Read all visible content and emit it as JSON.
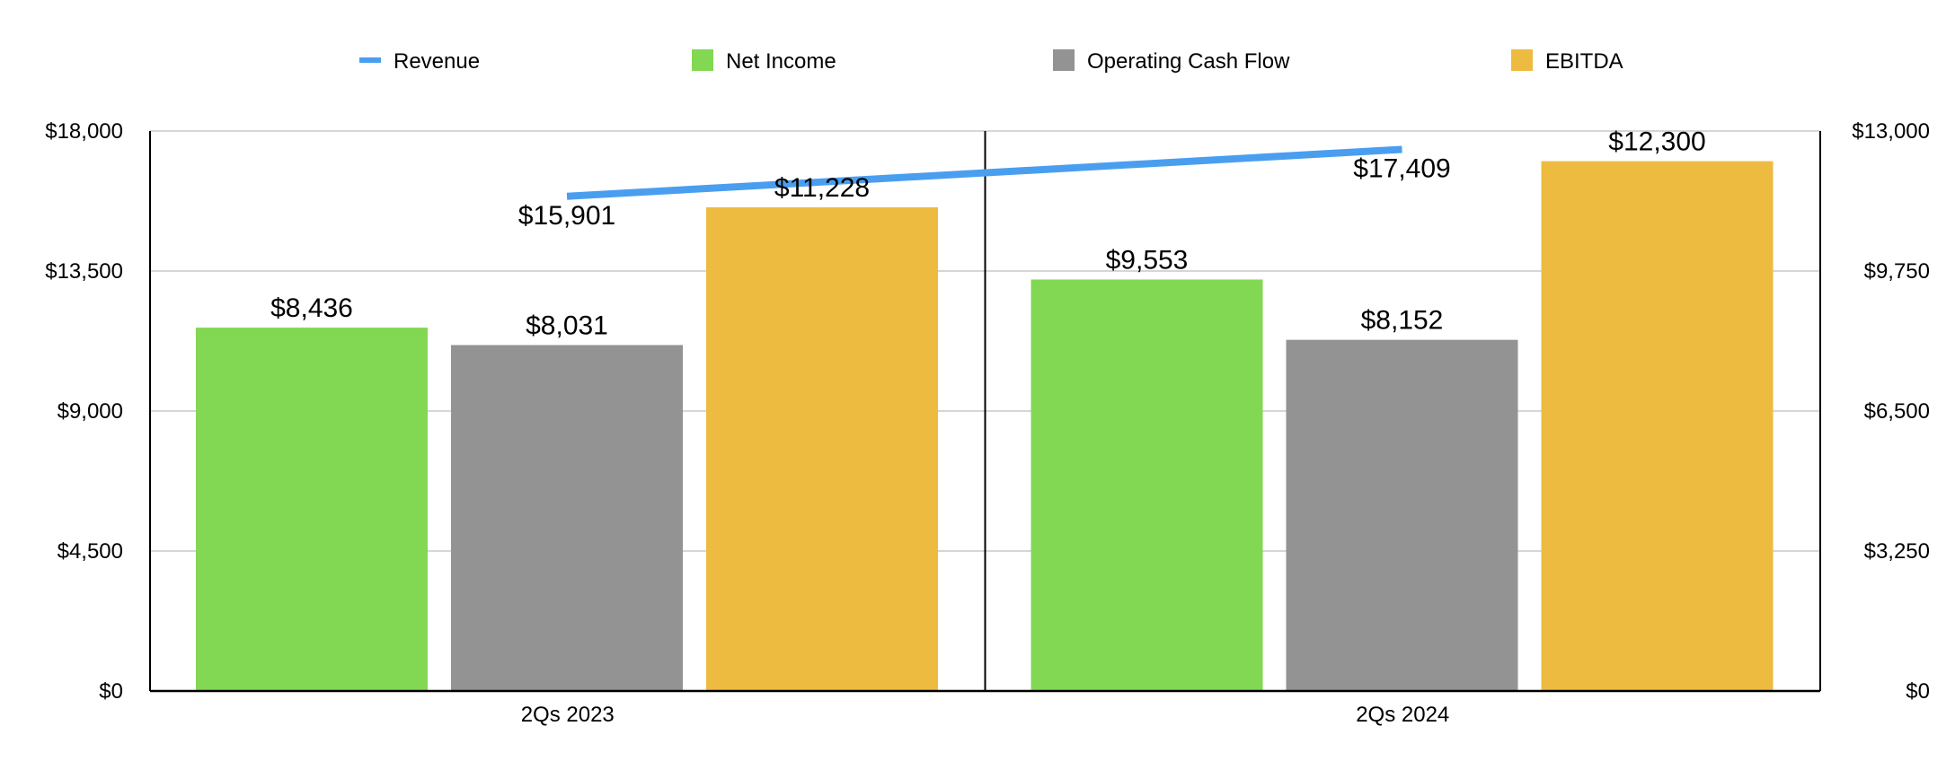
{
  "chart_data": {
    "type": "bar",
    "categories": [
      "2Qs 2023",
      "2Qs 2024"
    ],
    "series": [
      {
        "name": "Revenue",
        "kind": "line",
        "axis": "left",
        "color": "#4A9EF0",
        "values": [
          15901,
          17409
        ],
        "labels": [
          "$15,901",
          "$17,409"
        ]
      },
      {
        "name": "Net Income",
        "kind": "bar",
        "axis": "right",
        "color": "#82D853",
        "values": [
          8436,
          9553
        ],
        "labels": [
          "$8,436",
          "$9,553"
        ]
      },
      {
        "name": "Operating Cash Flow",
        "kind": "bar",
        "axis": "right",
        "color": "#939393",
        "values": [
          8031,
          8152
        ],
        "labels": [
          "$8,031",
          "$8,152"
        ]
      },
      {
        "name": "EBITDA",
        "kind": "bar",
        "axis": "right",
        "color": "#EDBB40",
        "values": [
          11228,
          12300
        ],
        "labels": [
          "$11,228",
          "$12,300"
        ]
      }
    ],
    "left_axis": {
      "ylim": [
        0,
        18000
      ],
      "ticks": [
        "$0",
        "$4,500",
        "$9,000",
        "$13,500",
        "$18,000"
      ]
    },
    "right_axis": {
      "ylim": [
        0,
        13000
      ],
      "ticks": [
        "$0",
        "$3,250",
        "$6,500",
        "$9,750",
        "$13,000"
      ]
    },
    "grid": true,
    "legend_position": "top-center"
  }
}
